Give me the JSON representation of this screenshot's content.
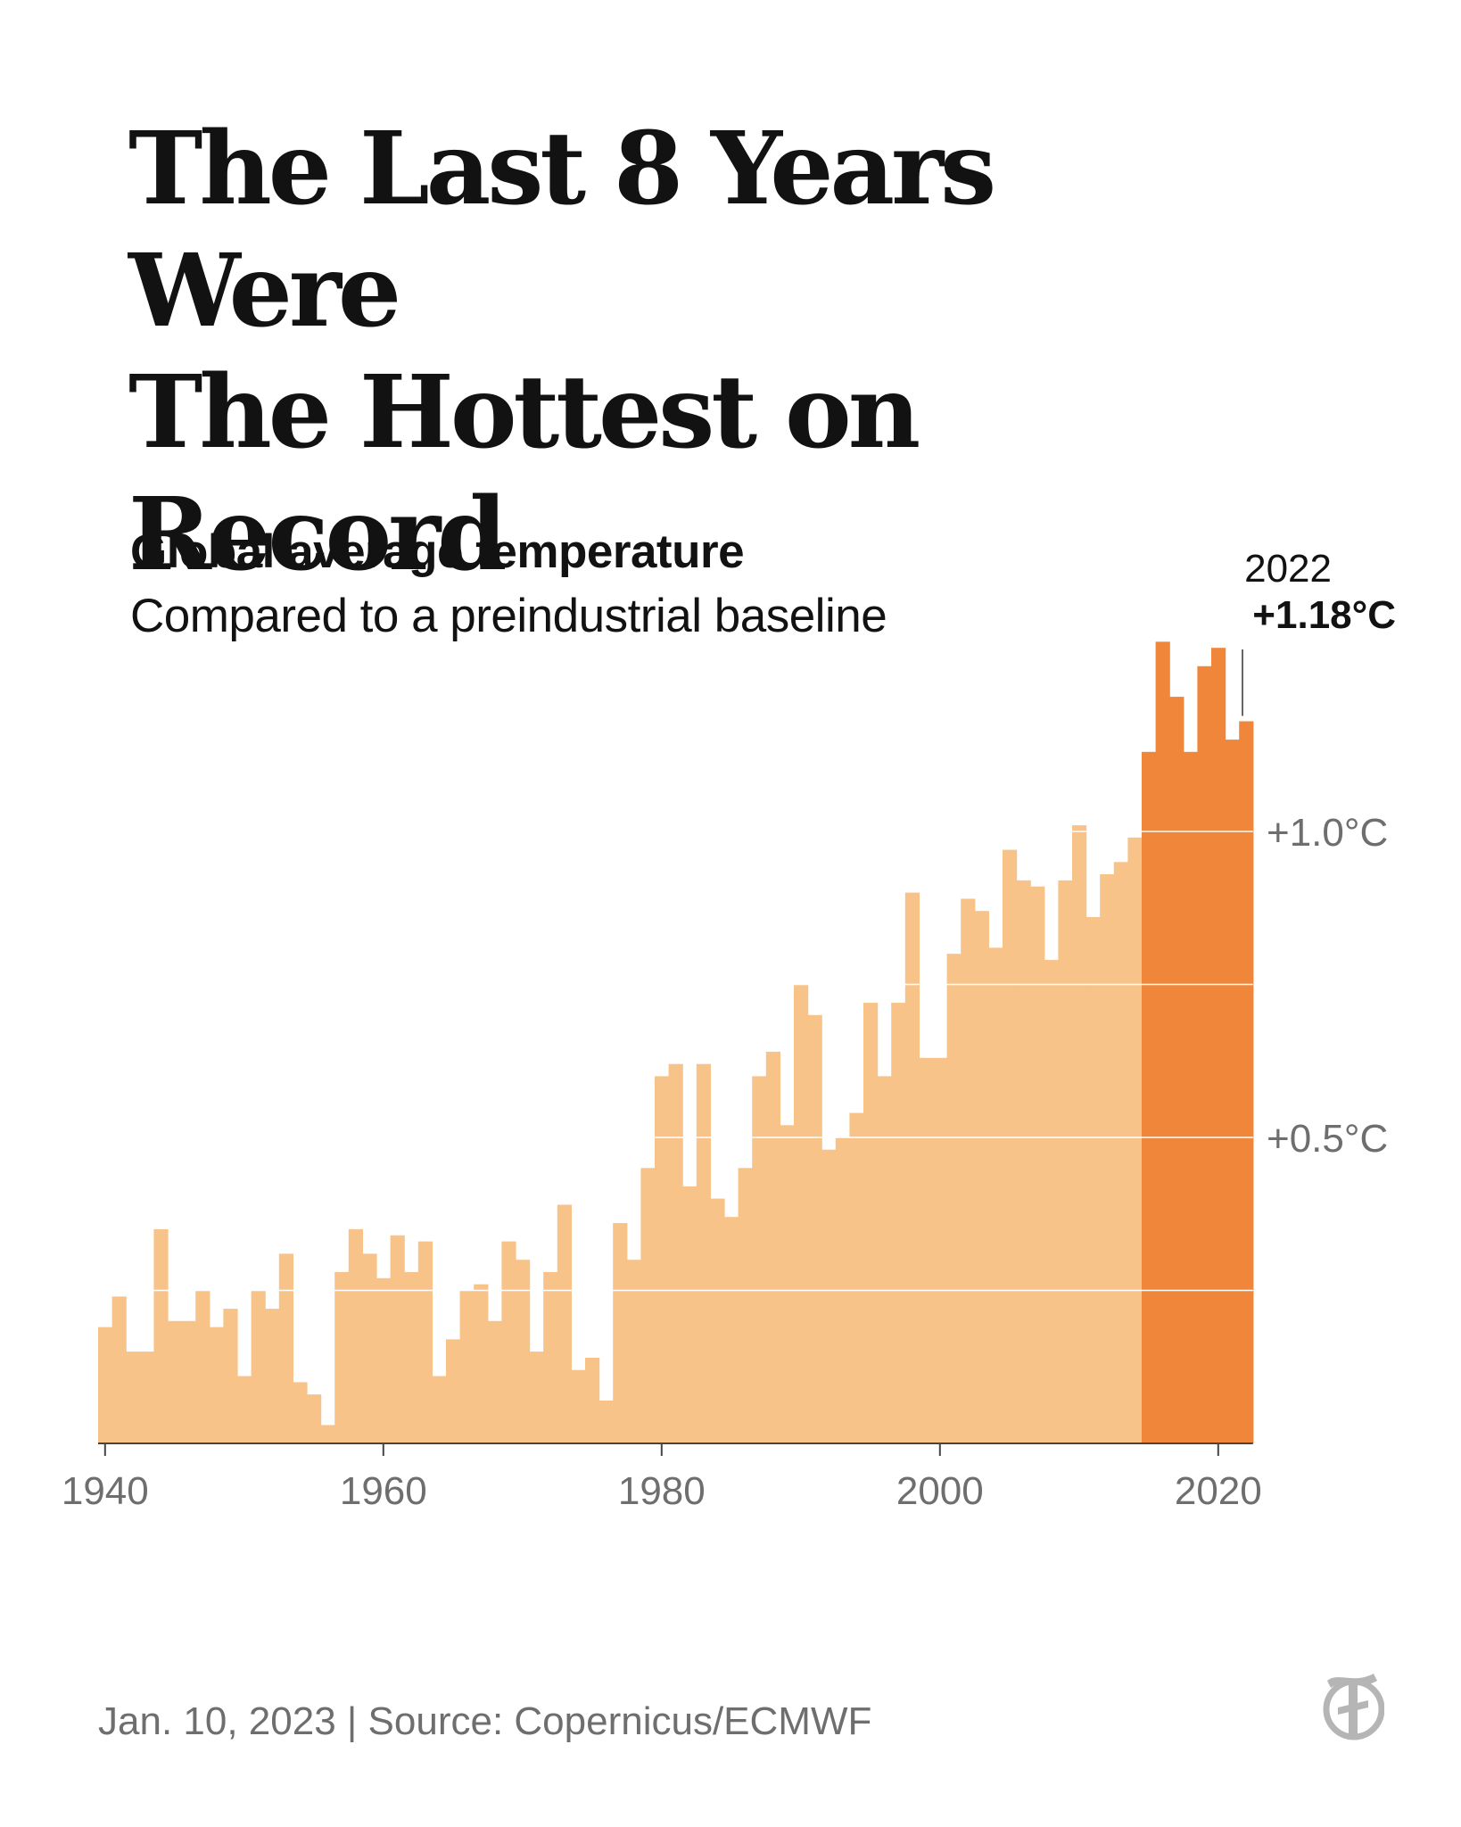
{
  "headline": {
    "line1": "The Last 8 Years Were",
    "line2": "The Hottest on Record"
  },
  "footer": "Jan. 10, 2023 | Source: Copernicus/ECMWF",
  "logo_icon": "nyt-t-logo-icon",
  "colors": {
    "bar_light": "#f7c388",
    "bar_dark": "#ef863a",
    "text": "#121212",
    "axis_text": "#6e6e6e",
    "logo": "#b5b5b5"
  },
  "chart_data": {
    "type": "bar",
    "title": "Global average temperature",
    "subtitle": "Compared to a preindustrial baseline",
    "x": [
      1940,
      1941,
      1942,
      1943,
      1944,
      1945,
      1946,
      1947,
      1948,
      1949,
      1950,
      1951,
      1952,
      1953,
      1954,
      1955,
      1956,
      1957,
      1958,
      1959,
      1960,
      1961,
      1962,
      1963,
      1964,
      1965,
      1966,
      1967,
      1968,
      1969,
      1970,
      1971,
      1972,
      1973,
      1974,
      1975,
      1976,
      1977,
      1978,
      1979,
      1980,
      1981,
      1982,
      1983,
      1984,
      1985,
      1986,
      1987,
      1988,
      1989,
      1990,
      1991,
      1992,
      1993,
      1994,
      1995,
      1996,
      1997,
      1998,
      1999,
      2000,
      2001,
      2002,
      2003,
      2004,
      2005,
      2006,
      2007,
      2008,
      2009,
      2010,
      2011,
      2012,
      2013,
      2014,
      2015,
      2016,
      2017,
      2018,
      2019,
      2020,
      2021,
      2022
    ],
    "values": [
      0.19,
      0.24,
      0.15,
      0.15,
      0.35,
      0.2,
      0.2,
      0.25,
      0.19,
      0.22,
      0.11,
      0.25,
      0.22,
      0.31,
      0.1,
      0.08,
      0.03,
      0.28,
      0.35,
      0.31,
      0.27,
      0.34,
      0.28,
      0.33,
      0.11,
      0.17,
      0.25,
      0.26,
      0.2,
      0.33,
      0.3,
      0.15,
      0.28,
      0.39,
      0.12,
      0.14,
      0.07,
      0.36,
      0.3,
      0.45,
      0.6,
      0.62,
      0.42,
      0.62,
      0.4,
      0.37,
      0.45,
      0.6,
      0.64,
      0.52,
      0.75,
      0.7,
      0.48,
      0.5,
      0.54,
      0.72,
      0.6,
      0.72,
      0.9,
      0.63,
      0.63,
      0.8,
      0.89,
      0.87,
      0.81,
      0.97,
      0.92,
      0.91,
      0.79,
      0.92,
      1.01,
      0.86,
      0.93,
      0.95,
      0.99,
      1.13,
      1.31,
      1.22,
      1.13,
      1.27,
      1.3,
      1.15,
      1.18
    ],
    "highlight_from": 2015,
    "xlabel": "",
    "ylabel": "",
    "x_ticks": [
      "1940",
      "1960",
      "1980",
      "2000",
      "2020"
    ],
    "y_tick_labels": [
      "+0.5°C",
      "+1.0°C"
    ],
    "y_tick_values": [
      0.5,
      1.0
    ],
    "ylim": [
      0,
      1.31
    ],
    "grid": true,
    "annotation": {
      "year": "2022",
      "value_label": "+1.18°C"
    }
  }
}
